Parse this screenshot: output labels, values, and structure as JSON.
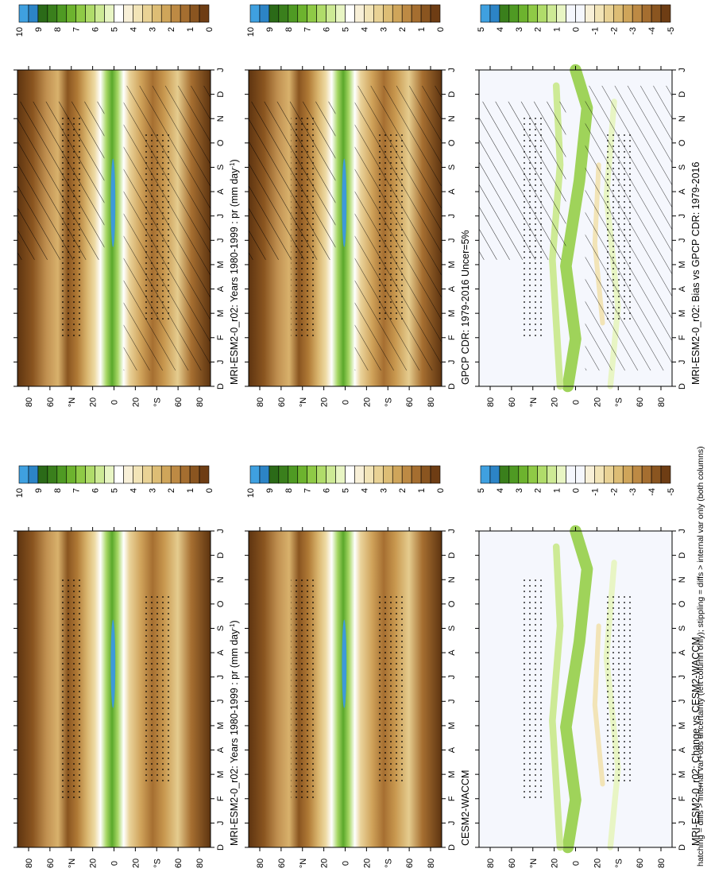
{
  "footnote": "hatching = diffs > internal var+obs uncertainty (left column only); stippling = diffs > internal var only (both columns)",
  "lat_ticks": [
    "80",
    "60",
    "°N",
    "20",
    "0",
    "20",
    "°S",
    "60",
    "80"
  ],
  "month_ticks": [
    "D",
    "J",
    "F",
    "M",
    "A",
    "M",
    "J",
    "J",
    "A",
    "S",
    "O",
    "N",
    "D",
    "J"
  ],
  "colors": {
    "abs_scale": [
      "#6e3d14",
      "#8a5520",
      "#a56e30",
      "#bd8a44",
      "#cfa55a",
      "#ddbd75",
      "#e9d295",
      "#f2e4b7",
      "#f8f0d8",
      "#ffffff",
      "#e8f5c4",
      "#cdea95",
      "#b0dc6a",
      "#8fca46",
      "#6db32e",
      "#4f9a23",
      "#3a7f1c",
      "#2b6a18",
      "#2c84c6",
      "#3fa0e0"
    ],
    "diff_scale": [
      "#6e3d14",
      "#8a5520",
      "#a56e30",
      "#bd8a44",
      "#cfa55a",
      "#ddbd75",
      "#e9d295",
      "#f2e4b7",
      "#f8f0d8",
      "#f5f7fd",
      "#f5f7fd",
      "#e8f5c4",
      "#cdea95",
      "#b0dc6a",
      "#8fca46",
      "#6db32e",
      "#4f9a23",
      "#3a7f1c",
      "#2c84c6",
      "#3fa0e0"
    ]
  },
  "chart_data": [
    {
      "type": "heatmap",
      "title": "MRI-ESM2-0_r02: Years 1980-1999 : pr (mm day",
      "title_sup": "-1",
      "title_end": ")",
      "colorbar_labels": [
        "10",
        "9",
        "8",
        "7",
        "6",
        "5",
        "4",
        "3",
        "2",
        "1",
        "0"
      ],
      "scale": "abs",
      "hatching": true,
      "stippling": true
    },
    {
      "type": "heatmap",
      "title": "GPCP CDR: 1979-2016 Uncer=5%",
      "colorbar_labels": [
        "10",
        "9",
        "8",
        "7",
        "6",
        "5",
        "4",
        "3",
        "2",
        "1",
        "0"
      ],
      "scale": "abs",
      "hatching": true,
      "stippling": true
    },
    {
      "type": "heatmap",
      "title": "MRI-ESM2-0_r02: Bias vs GPCP CDR: 1979-2016",
      "colorbar_labels": [
        "5",
        "4",
        "3",
        "2",
        "1",
        "0",
        "-1",
        "-2",
        "-3",
        "-4",
        "-5"
      ],
      "scale": "diff",
      "hatching": true,
      "stippling": true
    },
    {
      "type": "heatmap",
      "title": "MRI-ESM2-0_r02: Years 1980-1999 : pr (mm day",
      "title_sup": "-1",
      "title_end": ")",
      "colorbar_labels": [
        "10",
        "9",
        "8",
        "7",
        "6",
        "5",
        "4",
        "3",
        "2",
        "1",
        "0"
      ],
      "scale": "abs",
      "hatching": false,
      "stippling": true
    },
    {
      "type": "heatmap",
      "title": "CESM2-WACCM",
      "colorbar_labels": [
        "10",
        "9",
        "8",
        "7",
        "6",
        "5",
        "4",
        "3",
        "2",
        "1",
        "0"
      ],
      "scale": "abs",
      "hatching": false,
      "stippling": true
    },
    {
      "type": "heatmap",
      "title": "MRI-ESM2-0_r02: Change vs CESM2-WACCM",
      "colorbar_labels": [
        "5",
        "4",
        "3",
        "2",
        "1",
        "0",
        "-1",
        "-2",
        "-3",
        "-4",
        "-5"
      ],
      "scale": "diff",
      "hatching": false,
      "stippling": true
    }
  ]
}
